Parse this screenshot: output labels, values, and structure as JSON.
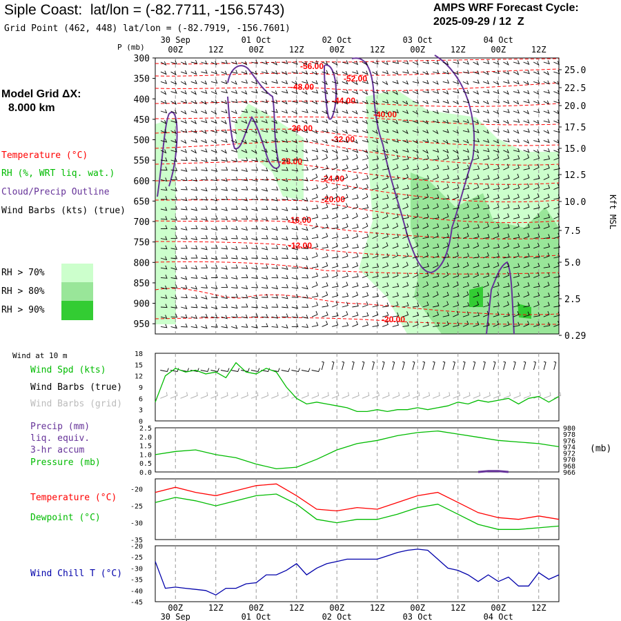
{
  "header": {
    "title": "Siple Coast:  lat/lon = (-82.7711, -156.5743)",
    "grid_point": "Grid Point (462, 448) lat/lon = (-82.7919, -156.7601)",
    "forecast_label": "AMPS WRF Forecast Cycle:",
    "forecast_cycle": "2025-09-29 / 12  Z"
  },
  "left_panel": {
    "model_grid_label": "Model Grid ΔX:",
    "model_grid_value": "8.000 km",
    "legend_temperature": "Temperature (°C)",
    "legend_rh": "RH (%, WRT liq. wat.)",
    "legend_cloud": "Cloud/Precip Outline",
    "legend_wind": "Wind Barbs (kts) (true)",
    "rh_70": "RH > 70%",
    "rh_80": "RH > 80%",
    "rh_90": "RH > 90%",
    "wind_at_10m": "Wind at 10 m",
    "wind_spd": "Wind Spd (kts)",
    "wind_barbs_true": "Wind Barbs (true)",
    "wind_barbs_grid": "Wind Barbs (grid)",
    "precip": "Precip (mm)",
    "precip_liq": "liq. equiv.",
    "precip_accum": "3-hr accum",
    "pressure": "Pressure (mb)",
    "pressure_unit": "(mb)",
    "temperature2": "Temperature (°C)",
    "dewpoint": "Dewpoint (°C)",
    "windchill": "Wind Chill T (°C)"
  },
  "colors": {
    "temperature": "#ff0000",
    "rh_70": "#ccffcc",
    "rh_80": "#99e699",
    "rh_90": "#33cc33",
    "cloud": "#663399",
    "wind_speed": "#00bb00",
    "wind_grid": "#aaaaaa",
    "pressure": "#00bb00",
    "dewpoint": "#00bb00",
    "windchill": "#0000aa",
    "grid_line": "#999999"
  },
  "time_axis": {
    "hour_labels": [
      "00Z",
      "12Z",
      "00Z",
      "12Z",
      "00Z",
      "12Z",
      "00Z",
      "12Z",
      "00Z",
      "12Z"
    ],
    "date_labels": [
      "30 Sep",
      "01 Oct",
      "02 Oct",
      "03 Oct",
      "04 Oct"
    ],
    "pressure_axis_label": "P (mb)"
  },
  "chart_data": [
    {
      "type": "contour",
      "name": "sounding",
      "pressure_levels": [
        300,
        350,
        400,
        450,
        500,
        550,
        600,
        650,
        700,
        750,
        800,
        850,
        900,
        950
      ],
      "height_kft_labels": [
        "25.0",
        "22.5",
        "20.0",
        "17.5",
        "15.0",
        "12.5",
        "10.0",
        "7.5",
        "5.0",
        "2.5",
        "0.29"
      ],
      "height_axis_label": "Kft MSL",
      "temperature_contour_labels": [
        "-56.00",
        "-52.00",
        "-48.00",
        "-44.00",
        "-40.00",
        "-36.00",
        "-32.00",
        "-28.00",
        "-24.00",
        "-20.00",
        "-16.00",
        "-12.00",
        "-20.00"
      ]
    },
    {
      "type": "line",
      "name": "wind_speed",
      "ylim": [
        0,
        18
      ],
      "yticks": [
        0,
        3,
        6,
        9,
        12,
        15,
        18
      ],
      "x": [
        0,
        3,
        6,
        9,
        12,
        15,
        18,
        21,
        24,
        27,
        30,
        33,
        36,
        39,
        42,
        45,
        48,
        51,
        54,
        57,
        60,
        63,
        66,
        69,
        72,
        75,
        78,
        81,
        84,
        87,
        90,
        93,
        96,
        99,
        102,
        105,
        108,
        111,
        114,
        117,
        120
      ],
      "values": [
        5,
        12,
        14,
        13,
        13.5,
        12.5,
        13,
        11.5,
        15.5,
        13,
        12.5,
        14,
        13,
        9,
        6,
        4.5,
        5,
        4.5,
        4,
        3.5,
        2.5,
        2.5,
        3,
        2.5,
        3,
        3,
        3.5,
        3,
        3.5,
        4,
        5,
        4.5,
        5.5,
        5,
        5.5,
        6,
        4.5,
        6,
        6.5,
        5,
        6.5
      ]
    },
    {
      "type": "line",
      "name": "pressure",
      "y_left_ticks": [
        "0.0",
        "0.5",
        "1.0",
        "1.5",
        "2.0",
        "2.5"
      ],
      "y_right_ticks": [
        "966",
        "968",
        "970",
        "972",
        "974",
        "976",
        "978",
        "980"
      ],
      "ylim": [
        966,
        980
      ],
      "x": [
        0,
        6,
        12,
        18,
        24,
        30,
        36,
        42,
        48,
        54,
        60,
        66,
        72,
        78,
        84,
        90,
        96,
        102,
        108,
        114,
        120
      ],
      "values": [
        971.5,
        972.5,
        973,
        971.5,
        970.5,
        968.5,
        967,
        967.5,
        970,
        973,
        975,
        976,
        977.5,
        978.5,
        979,
        978,
        977,
        976,
        975.5,
        975,
        974
      ],
      "precip": {
        "x": [
          96,
          99,
          102,
          105
        ],
        "values": [
          0,
          0.05,
          0.05,
          0
        ]
      }
    },
    {
      "type": "line",
      "name": "temperature_dewpoint",
      "yticks": [
        -20,
        -25,
        -30,
        -35
      ],
      "ylim": [
        -35,
        -17
      ],
      "x": [
        0,
        6,
        12,
        18,
        24,
        30,
        36,
        42,
        48,
        54,
        60,
        66,
        72,
        78,
        84,
        90,
        96,
        102,
        108,
        114,
        120
      ],
      "temperature": [
        -21,
        -19.5,
        -21,
        -22,
        -20.5,
        -19,
        -18.5,
        -22,
        -26,
        -26.5,
        -25.5,
        -26,
        -24,
        -22,
        -21,
        -24,
        -27,
        -28.5,
        -29,
        -28,
        -29
      ],
      "dewpoint": [
        -24,
        -22.5,
        -23.5,
        -25,
        -23.5,
        -22,
        -21.5,
        -24.5,
        -29,
        -30,
        -29,
        -29,
        -27.5,
        -25.5,
        -24.5,
        -27.5,
        -30.5,
        -32,
        -32,
        -31.5,
        -31
      ]
    },
    {
      "type": "line",
      "name": "wind_chill",
      "yticks": [
        -20,
        -25,
        -30,
        -35,
        -40,
        -45
      ],
      "ylim": [
        -45,
        -20
      ],
      "x": [
        0,
        3,
        6,
        9,
        12,
        15,
        18,
        21,
        24,
        27,
        30,
        33,
        36,
        39,
        42,
        45,
        48,
        51,
        54,
        57,
        60,
        63,
        66,
        69,
        72,
        75,
        78,
        81,
        84,
        87,
        90,
        93,
        96,
        99,
        102,
        105,
        108,
        111,
        114,
        117,
        120
      ],
      "values": [
        -27,
        -39,
        -38.5,
        -39,
        -39.5,
        -40,
        -42,
        -39,
        -39,
        -37,
        -36.5,
        -33,
        -33,
        -31,
        -28,
        -33,
        -30,
        -28,
        -27,
        -26,
        -26,
        -26,
        -26,
        -24.5,
        -23,
        -22,
        -21.5,
        -22,
        -26,
        -30,
        -31,
        -33,
        -36,
        -33,
        -36,
        -34,
        -38,
        -38,
        -32,
        -35,
        -33
      ]
    }
  ]
}
